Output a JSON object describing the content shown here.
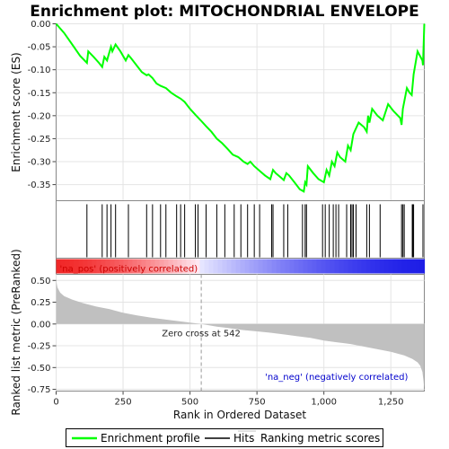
{
  "chart_data": [
    {
      "type": "line",
      "title": "Enrichment plot: MITOCHONDRIAL ENVELOPE",
      "ylabel": "Enrichment score (ES)",
      "xlim": [
        0,
        1375
      ],
      "ylim": [
        -0.385,
        0.0
      ],
      "yticks": [
        0.0,
        -0.05,
        -0.1,
        -0.15,
        -0.2,
        -0.25,
        -0.3,
        -0.35
      ],
      "ytick_labels": [
        "0.00",
        "-0.05",
        "-0.10",
        "-0.15",
        "-0.20",
        "-0.25",
        "-0.30",
        "-0.35"
      ],
      "grid": true,
      "color": "#00ff00",
      "series": [
        {
          "name": "Enrichment profile",
          "x": [
            0,
            30,
            60,
            90,
            115,
            120,
            140,
            160,
            172,
            180,
            190,
            195,
            205,
            210,
            222,
            240,
            260,
            270,
            280,
            300,
            320,
            338,
            345,
            360,
            375,
            390,
            410,
            430,
            450,
            465,
            480,
            500,
            520,
            540,
            560,
            580,
            600,
            620,
            640,
            660,
            680,
            690,
            700,
            715,
            725,
            740,
            760,
            780,
            800,
            810,
            820,
            840,
            850,
            860,
            870,
            890,
            910,
            925,
            930,
            935,
            940,
            960,
            980,
            1000,
            1010,
            1020,
            1030,
            1040,
            1050,
            1060,
            1080,
            1090,
            1100,
            1110,
            1130,
            1150,
            1160,
            1165,
            1170,
            1180,
            1200,
            1210,
            1220,
            1240,
            1260,
            1285,
            1290,
            1295,
            1310,
            1320,
            1328,
            1335,
            1350,
            1368,
            1370,
            1375
          ],
          "y": [
            0.0,
            -0.02,
            -0.045,
            -0.07,
            -0.085,
            -0.06,
            -0.072,
            -0.085,
            -0.094,
            -0.072,
            -0.08,
            -0.07,
            -0.05,
            -0.06,
            -0.045,
            -0.06,
            -0.08,
            -0.068,
            -0.075,
            -0.09,
            -0.105,
            -0.112,
            -0.11,
            -0.118,
            -0.13,
            -0.135,
            -0.14,
            -0.15,
            -0.158,
            -0.163,
            -0.17,
            -0.185,
            -0.198,
            -0.21,
            -0.223,
            -0.235,
            -0.25,
            -0.26,
            -0.272,
            -0.285,
            -0.29,
            -0.295,
            -0.3,
            -0.305,
            -0.3,
            -0.31,
            -0.32,
            -0.33,
            -0.338,
            -0.318,
            -0.325,
            -0.335,
            -0.34,
            -0.325,
            -0.33,
            -0.345,
            -0.36,
            -0.365,
            -0.345,
            -0.35,
            -0.31,
            -0.325,
            -0.338,
            -0.345,
            -0.318,
            -0.33,
            -0.3,
            -0.31,
            -0.28,
            -0.29,
            -0.3,
            -0.265,
            -0.275,
            -0.24,
            -0.215,
            -0.225,
            -0.235,
            -0.2,
            -0.215,
            -0.185,
            -0.2,
            -0.205,
            -0.21,
            -0.175,
            -0.19,
            -0.205,
            -0.22,
            -0.185,
            -0.14,
            -0.15,
            -0.155,
            -0.11,
            -0.06,
            -0.08,
            -0.09,
            0.0
          ]
        }
      ]
    },
    {
      "type": "scatter",
      "subtype": "hits",
      "xlim": [
        0,
        1375
      ],
      "series": [
        {
          "name": "Hits",
          "x": [
            115,
            172,
            190,
            205,
            222,
            270,
            338,
            360,
            390,
            410,
            450,
            465,
            480,
            520,
            530,
            560,
            600,
            630,
            665,
            690,
            715,
            740,
            760,
            805,
            810,
            850,
            865,
            920,
            930,
            935,
            995,
            1005,
            1020,
            1035,
            1045,
            1055,
            1085,
            1100,
            1105,
            1110,
            1120,
            1160,
            1170,
            1210,
            1290,
            1295,
            1300,
            1330,
            1332,
            1335,
            1370
          ]
        }
      ]
    },
    {
      "type": "area",
      "ylabel": "Ranked list metric (PreRanked)",
      "xlabel": "Rank in Ordered Dataset",
      "xlim": [
        0,
        1375
      ],
      "ylim": [
        -0.77,
        0.57
      ],
      "xticks": [
        0,
        250,
        500,
        750,
        1000,
        1250
      ],
      "xtick_labels": [
        "0",
        "250",
        "500",
        "750",
        "1,000",
        "1,250"
      ],
      "yticks": [
        0.5,
        0.25,
        0.0,
        -0.25,
        -0.5,
        -0.75
      ],
      "ytick_labels": [
        "0.50",
        "0.25",
        "0.00",
        "-0.25",
        "-0.50",
        "-0.75"
      ],
      "grid": true,
      "color": "#c0c0c0",
      "series": [
        {
          "name": "Ranking metric scores",
          "x": [
            0,
            5,
            15,
            30,
            60,
            100,
            150,
            200,
            250,
            300,
            350,
            400,
            450,
            500,
            542,
            600,
            650,
            700,
            750,
            800,
            850,
            900,
            950,
            1000,
            1050,
            1100,
            1150,
            1200,
            1250,
            1300,
            1330,
            1350,
            1360,
            1368,
            1372,
            1375
          ],
          "y": [
            0.5,
            0.42,
            0.36,
            0.32,
            0.28,
            0.24,
            0.2,
            0.17,
            0.13,
            0.1,
            0.075,
            0.055,
            0.035,
            0.015,
            0.0,
            -0.03,
            -0.05,
            -0.07,
            -0.085,
            -0.1,
            -0.12,
            -0.14,
            -0.16,
            -0.19,
            -0.21,
            -0.23,
            -0.26,
            -0.29,
            -0.32,
            -0.36,
            -0.4,
            -0.44,
            -0.48,
            -0.55,
            -0.65,
            -0.75
          ]
        }
      ],
      "annotations": {
        "zero_cross": "Zero cross at 542",
        "zero_cross_x": 542,
        "na_pos": "'na_pos' (positively correlated)",
        "na_neg": "'na_neg' (negatively correlated)"
      }
    }
  ],
  "legend": {
    "items": [
      {
        "label": "Enrichment profile",
        "color": "#00ff00"
      },
      {
        "label": "Hits",
        "color": "#000000"
      },
      {
        "label": "Ranking metric scores",
        "color": "#c0c0c0"
      }
    ]
  },
  "colors": {
    "profile": "#00ff00",
    "positive": "#ff0000",
    "negative": "#0000ff",
    "na_pos_text": "#cc0000",
    "na_neg_text": "#0000cc",
    "metric_fill": "#c0c0c0"
  }
}
